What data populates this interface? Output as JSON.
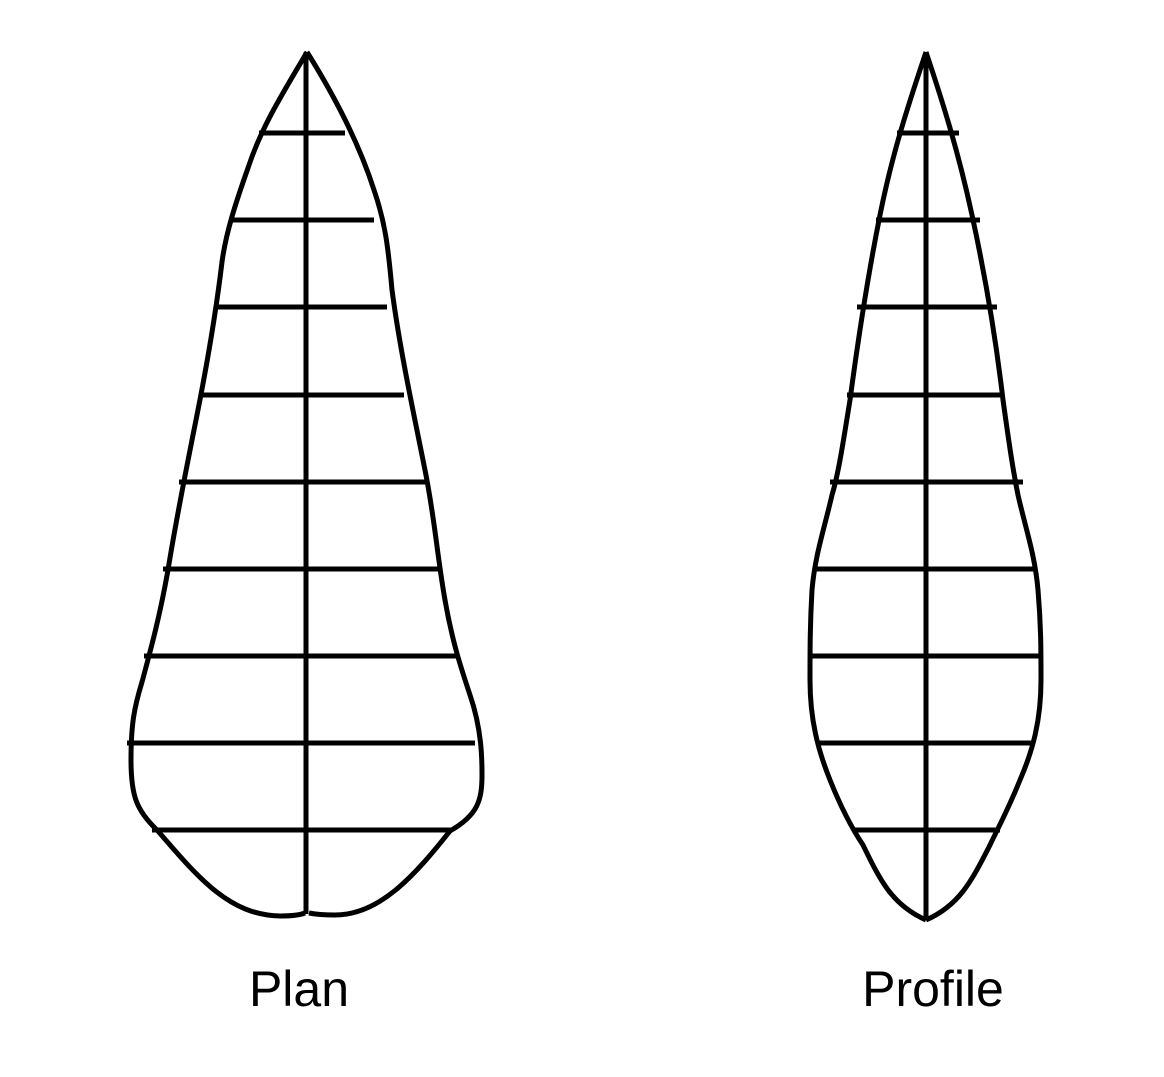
{
  "views": [
    {
      "id": "plan",
      "label": "Plan"
    },
    {
      "id": "profile",
      "label": "Profile"
    }
  ],
  "style": {
    "line_color": "#000000",
    "background": "#ffffff"
  }
}
